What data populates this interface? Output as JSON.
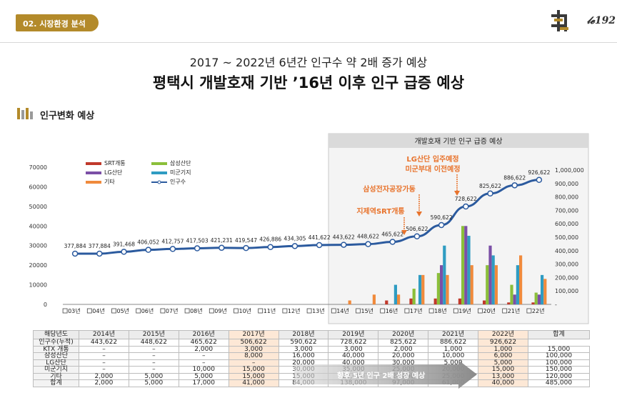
{
  "header": {
    "section_tag": "02. 시장환경 분석",
    "logo_text": "𝓁𝓮192",
    "subtitle": "2017 ~ 2022년 6년간 인구수 약 2배 증가 예상",
    "title": "평택시 개발호재 기반 ’16년 이후 인구 급증 예상",
    "section_label": "인구변화 예상"
  },
  "colors": {
    "srt": "#c0392b",
    "samsung": "#8bbf3a",
    "lg": "#7b4fa6",
    "military": "#2f9cc2",
    "other": "#f08a3c",
    "population": "#2b5a9e",
    "accent": "#b38a2a",
    "note": "#e8732c"
  },
  "highlight_box": {
    "title": "개발호재 기반 인구 급증 예상"
  },
  "annotations": [
    "LG산단 입주예정",
    "미군부대 이전예정",
    "삼성전자공장가동",
    "지제역SRT개통"
  ],
  "chart_data": {
    "type": "bar",
    "categories": [
      "03년",
      "04년",
      "05년",
      "06년",
      "07년",
      "08년",
      "09년",
      "10년",
      "11년",
      "12년",
      "13년",
      "14년",
      "15년",
      "16년",
      "17년",
      "18년",
      "19년",
      "20년",
      "21년",
      "22년"
    ],
    "left_axis": {
      "ylim": [
        0,
        70000
      ],
      "ticks": [
        "0",
        "10000",
        "20000",
        "30000",
        "40000",
        "50000",
        "60000",
        "70000"
      ]
    },
    "right_axis": {
      "ylim": [
        0,
        1000000
      ],
      "ticks": [
        "-",
        "100,000",
        "200,000",
        "300,000",
        "400,000",
        "500,000",
        "600,000",
        "700,000",
        "800,000",
        "900,000",
        "1,000,000"
      ]
    },
    "series": [
      {
        "name": "SRT개통",
        "values": [
          0,
          0,
          0,
          0,
          0,
          0,
          0,
          0,
          0,
          0,
          0,
          0,
          0,
          2000,
          3000,
          3000,
          3000,
          2000,
          1000,
          1000
        ]
      },
      {
        "name": "삼성산단",
        "values": [
          0,
          0,
          0,
          0,
          0,
          0,
          0,
          0,
          0,
          0,
          0,
          0,
          0,
          0,
          8000,
          16000,
          40000,
          20000,
          10000,
          6000
        ]
      },
      {
        "name": "LG산단",
        "values": [
          0,
          0,
          0,
          0,
          0,
          0,
          0,
          0,
          0,
          0,
          0,
          0,
          0,
          0,
          0,
          20000,
          40000,
          30000,
          5000,
          5000
        ]
      },
      {
        "name": "미군기지",
        "values": [
          0,
          0,
          0,
          0,
          0,
          0,
          0,
          0,
          0,
          0,
          0,
          0,
          0,
          10000,
          15000,
          30000,
          35000,
          25000,
          20000,
          15000
        ]
      },
      {
        "name": "기타",
        "values": [
          0,
          0,
          0,
          0,
          0,
          0,
          0,
          0,
          0,
          0,
          0,
          2000,
          5000,
          5000,
          15000,
          15000,
          20000,
          20000,
          25000,
          13000
        ]
      }
    ],
    "line": {
      "name": "인구수",
      "values": [
        377884,
        377884,
        391468,
        406052,
        412757,
        417503,
        421231,
        419547,
        426886,
        434305,
        441622,
        443622,
        448622,
        465622,
        506622,
        590622,
        728622,
        825622,
        886622,
        926622
      ],
      "labels": [
        "377,884",
        "377,884",
        "391,468",
        "406,052",
        "412,757",
        "417,503",
        "421,231",
        "419,547",
        "426,886",
        "434,305",
        "441,622",
        "443,622",
        "448,622",
        "465,622",
        "506,622",
        "590,622",
        "728,622",
        "825,622",
        "886,622",
        "926,622"
      ]
    }
  },
  "table": {
    "headers": [
      "해당년도",
      "2014년",
      "2015년",
      "2016년",
      "2017년",
      "2018년",
      "2019년",
      "2020년",
      "2021년",
      "2022년",
      "합계"
    ],
    "rows": [
      [
        "인구수(누적)",
        "443,622",
        "448,622",
        "465,622",
        "506,622",
        "590,622",
        "728,622",
        "825,622",
        "886,622",
        "926,622",
        ""
      ],
      [
        "KTX 개통",
        "–",
        "–",
        "2,000",
        "3,000",
        "3,000",
        "3,000",
        "2,000",
        "1,000",
        "1,000",
        "15,000"
      ],
      [
        "삼성산단",
        "–",
        "–",
        "–",
        "8,000",
        "16,000",
        "40,000",
        "20,000",
        "10,000",
        "6,000",
        "100,000"
      ],
      [
        "LG산단",
        "–",
        "–",
        "–",
        "–",
        "20,000",
        "40,000",
        "30,000",
        "5,000",
        "5,000",
        "100,000"
      ],
      [
        "미군기지",
        "–",
        "–",
        "10,000",
        "15,000",
        "30,000",
        "35,000",
        "25,000",
        "20,000",
        "15,000",
        "150,000"
      ],
      [
        "기타",
        "2,000",
        "5,000",
        "5,000",
        "15,000",
        "15,000",
        "20,000",
        "20,000",
        "25,000",
        "13,000",
        "120,000"
      ],
      [
        "합계",
        "2,000",
        "5,000",
        "17,000",
        "41,000",
        "84,000",
        "138,000",
        "97,000",
        "61,000",
        "40,000",
        "485,000"
      ]
    ],
    "arrow_text": "향후 5년 인구 2배 성장 예상"
  }
}
